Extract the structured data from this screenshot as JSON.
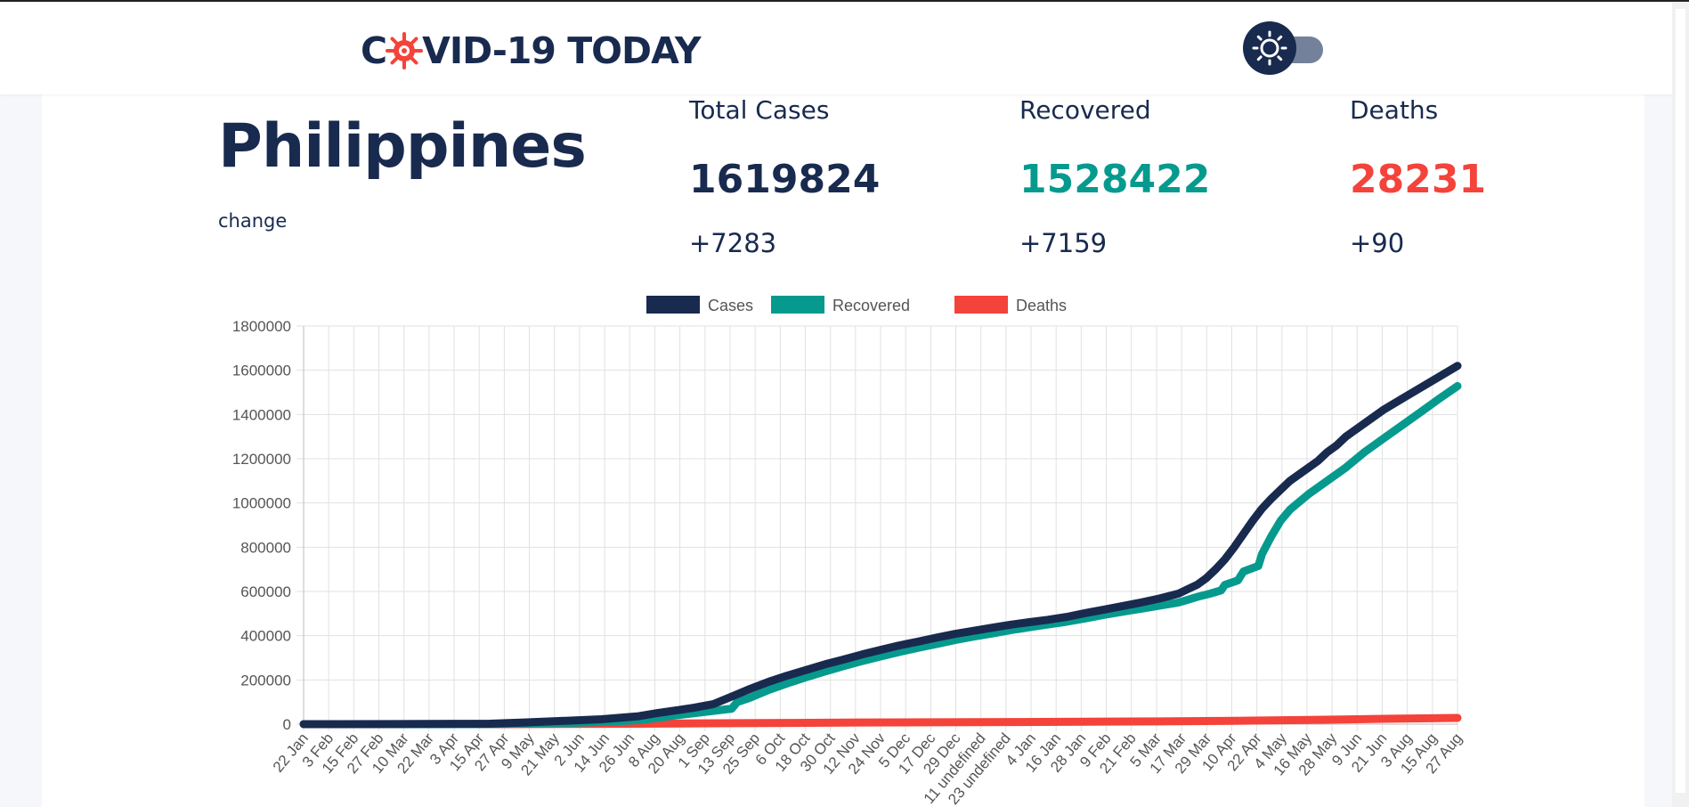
{
  "header": {
    "logo_prefix": "C",
    "logo_suffix": "VID-19 TODAY",
    "theme_toggle_icon": "sun-icon"
  },
  "country": {
    "name": "Philippines",
    "change_label": "change"
  },
  "stats": {
    "total": {
      "label": "Total Cases",
      "value": "1619824",
      "delta": "+7283"
    },
    "recovered": {
      "label": "Recovered",
      "value": "1528422",
      "delta": "+7159"
    },
    "deaths": {
      "label": "Deaths",
      "value": "28231",
      "delta": "+90"
    }
  },
  "colors": {
    "cases": "#192a4f",
    "recovered": "#069a8e",
    "deaths": "#f4433a",
    "grid": "#e1e1e1",
    "axis_text": "#555555"
  },
  "chart_data": {
    "type": "line",
    "legend_position": "top",
    "grid": true,
    "ylim": [
      0,
      1800000
    ],
    "yticks": [
      0,
      200000,
      400000,
      600000,
      800000,
      1000000,
      1200000,
      1400000,
      1600000,
      1800000
    ],
    "x_tick_labels": [
      "22 Jan",
      "3 Feb",
      "15 Feb",
      "27 Feb",
      "10 Mar",
      "22 Mar",
      "3 Apr",
      "15 Apr",
      "27 Apr",
      "9 May",
      "21 May",
      "2 Jun",
      "14 Jun",
      "26 Jun",
      "8 Aug",
      "20 Aug",
      "1 Sep",
      "13 Sep",
      "25 Sep",
      "6 Oct",
      "18 Oct",
      "30 Oct",
      "12 Nov",
      "24 Nov",
      "5 Dec",
      "17 Dec",
      "29 Dec",
      "11 undefined",
      "23 undefined",
      "4 Jan",
      "16 Jan",
      "28 Jan",
      "9 Feb",
      "21 Feb",
      "5 Mar",
      "17 Mar",
      "29 Mar",
      "10 Apr",
      "22 Apr",
      "4 May",
      "16 May",
      "28 May",
      "9 Jun",
      "21 Jun",
      "3 Aug",
      "15 Aug",
      "27 Aug"
    ],
    "series": [
      {
        "name": "Cases",
        "color_key": "cases",
        "points": [
          [
            0,
            0
          ],
          [
            5,
            400
          ],
          [
            10,
            2000
          ],
          [
            12,
            8000
          ],
          [
            14,
            15000
          ],
          [
            16,
            22000
          ],
          [
            18,
            36000
          ],
          [
            19,
            50000
          ],
          [
            20,
            62000
          ],
          [
            21,
            75000
          ],
          [
            22,
            90000
          ],
          [
            23,
            125000
          ],
          [
            24,
            160000
          ],
          [
            25,
            192000
          ],
          [
            26,
            220000
          ],
          [
            27,
            245000
          ],
          [
            28,
            270000
          ],
          [
            29,
            292000
          ],
          [
            30,
            315000
          ],
          [
            31,
            336000
          ],
          [
            32,
            356000
          ],
          [
            33,
            373000
          ],
          [
            34,
            391000
          ],
          [
            35,
            408000
          ],
          [
            36,
            422000
          ],
          [
            37,
            436000
          ],
          [
            38,
            450000
          ],
          [
            39,
            461000
          ],
          [
            40,
            472000
          ],
          [
            41,
            485000
          ],
          [
            42,
            502000
          ],
          [
            43,
            518000
          ],
          [
            44,
            534000
          ],
          [
            45,
            550000
          ],
          [
            46,
            568000
          ],
          [
            47,
            590000
          ],
          [
            47.5,
            610000
          ],
          [
            48,
            630000
          ],
          [
            48.5,
            660000
          ],
          [
            49,
            700000
          ],
          [
            49.5,
            745000
          ],
          [
            50,
            800000
          ],
          [
            50.5,
            860000
          ],
          [
            51,
            920000
          ],
          [
            51.5,
            975000
          ],
          [
            52,
            1020000
          ],
          [
            52.5,
            1060000
          ],
          [
            53,
            1100000
          ],
          [
            54,
            1160000
          ],
          [
            54.5,
            1190000
          ],
          [
            55,
            1230000
          ],
          [
            55.5,
            1260000
          ],
          [
            56,
            1300000
          ],
          [
            57,
            1360000
          ],
          [
            58,
            1420000
          ],
          [
            59,
            1470000
          ],
          [
            60,
            1520000
          ],
          [
            61,
            1570000
          ],
          [
            62,
            1619824
          ]
        ]
      },
      {
        "name": "Recovered",
        "color_key": "recovered",
        "points": [
          [
            0,
            0
          ],
          [
            5,
            100
          ],
          [
            10,
            600
          ],
          [
            12,
            2000
          ],
          [
            14,
            5000
          ],
          [
            16,
            10000
          ],
          [
            18,
            18000
          ],
          [
            19,
            28000
          ],
          [
            20,
            40000
          ],
          [
            21,
            50000
          ],
          [
            22,
            60000
          ],
          [
            23,
            70000
          ],
          [
            23.3,
            100000
          ],
          [
            24,
            120000
          ],
          [
            25,
            155000
          ],
          [
            26,
            185000
          ],
          [
            27,
            212000
          ],
          [
            28,
            238000
          ],
          [
            29,
            262000
          ],
          [
            30,
            285000
          ],
          [
            31,
            306000
          ],
          [
            32,
            326000
          ],
          [
            33,
            345000
          ],
          [
            34,
            362000
          ],
          [
            35,
            380000
          ],
          [
            36,
            396000
          ],
          [
            37,
            410000
          ],
          [
            38,
            425000
          ],
          [
            39,
            438000
          ],
          [
            40,
            451000
          ],
          [
            41,
            463000
          ],
          [
            42,
            478000
          ],
          [
            43,
            494000
          ],
          [
            44,
            508000
          ],
          [
            45,
            522000
          ],
          [
            46,
            536000
          ],
          [
            47,
            550000
          ],
          [
            47.5,
            562000
          ],
          [
            48,
            575000
          ],
          [
            48.7,
            590000
          ],
          [
            49.3,
            605000
          ],
          [
            49.5,
            630000
          ],
          [
            50.2,
            650000
          ],
          [
            50.5,
            690000
          ],
          [
            51.3,
            715000
          ],
          [
            51.5,
            770000
          ],
          [
            52,
            850000
          ],
          [
            52.5,
            920000
          ],
          [
            53,
            970000
          ],
          [
            54,
            1040000
          ],
          [
            55,
            1100000
          ],
          [
            56,
            1160000
          ],
          [
            57,
            1230000
          ],
          [
            58,
            1290000
          ],
          [
            59,
            1350000
          ],
          [
            60,
            1410000
          ],
          [
            61,
            1470000
          ],
          [
            62,
            1528422
          ]
        ]
      },
      {
        "name": "Deaths",
        "color_key": "deaths",
        "points": [
          [
            0,
            0
          ],
          [
            10,
            100
          ],
          [
            14,
            800
          ],
          [
            18,
            2000
          ],
          [
            22,
            4000
          ],
          [
            26,
            5500
          ],
          [
            30,
            7500
          ],
          [
            34,
            8500
          ],
          [
            38,
            9500
          ],
          [
            42,
            11000
          ],
          [
            46,
            12500
          ],
          [
            50,
            15000
          ],
          [
            54,
            19000
          ],
          [
            58,
            24000
          ],
          [
            62,
            28231
          ]
        ]
      }
    ]
  }
}
